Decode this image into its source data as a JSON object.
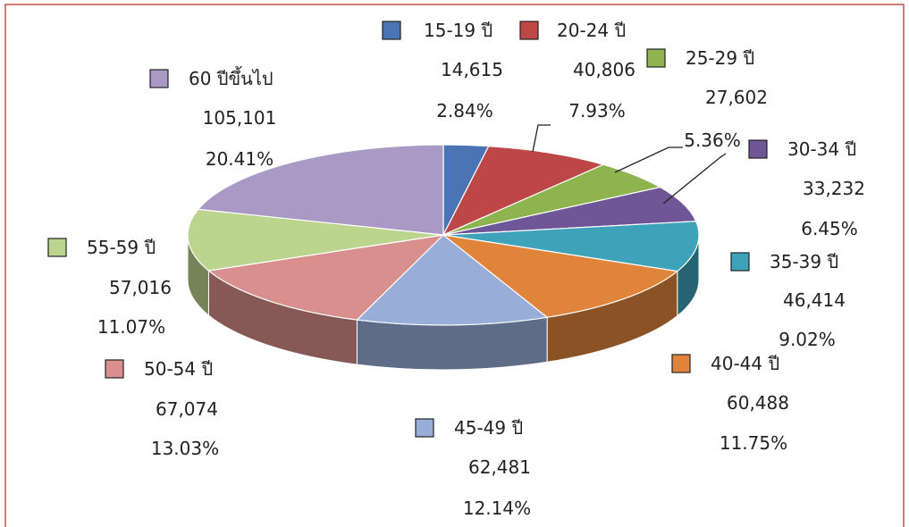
{
  "chart_data": {
    "type": "pie",
    "style": "3d",
    "legend_placement": "around-pie",
    "slices": [
      {
        "label": "15-19 ปี",
        "value": 14615,
        "value_text": "14,615",
        "percent": 2.84,
        "percent_text": "2.84%",
        "color": "#4a74b4"
      },
      {
        "label": "20-24 ปี",
        "value": 40806,
        "value_text": "40,806",
        "percent": 7.93,
        "percent_text": "7.93%",
        "color": "#bd4646"
      },
      {
        "label": "25-29 ปี",
        "value": 27602,
        "value_text": "27,602",
        "percent": 5.36,
        "percent_text": "5.36%",
        "color": "#8db44f"
      },
      {
        "label": "30-34 ปี",
        "value": 33232,
        "value_text": "33,232",
        "percent": 6.45,
        "percent_text": "6.45%",
        "color": "#6f5696"
      },
      {
        "label": "35-39 ปี",
        "value": 46414,
        "value_text": "46,414",
        "percent": 9.02,
        "percent_text": "9.02%",
        "color": "#3ea2b9"
      },
      {
        "label": "40-44 ปี",
        "value": 60488,
        "value_text": "60,488",
        "percent": 11.75,
        "percent_text": "11.75%",
        "color": "#e0843c"
      },
      {
        "label": "45-49 ปี",
        "value": 62481,
        "value_text": "62,481",
        "percent": 12.14,
        "percent_text": "12.14%",
        "color": "#98aed9"
      },
      {
        "label": "50-54 ปี",
        "value": 67074,
        "value_text": "67,074",
        "percent": 13.03,
        "percent_text": "13.03%",
        "color": "#d88f8d"
      },
      {
        "label": "55-59 ปี",
        "value": 57016,
        "value_text": "57,016",
        "percent": 11.07,
        "percent_text": "11.07%",
        "color": "#bcd58e"
      },
      {
        "label": "60 ปีขึ้นไป",
        "value": 105101,
        "value_text": "105,101",
        "percent": 20.41,
        "percent_text": "20.41%",
        "color": "#a999c4"
      }
    ]
  },
  "frame": {
    "border_color": "#c0504d"
  }
}
